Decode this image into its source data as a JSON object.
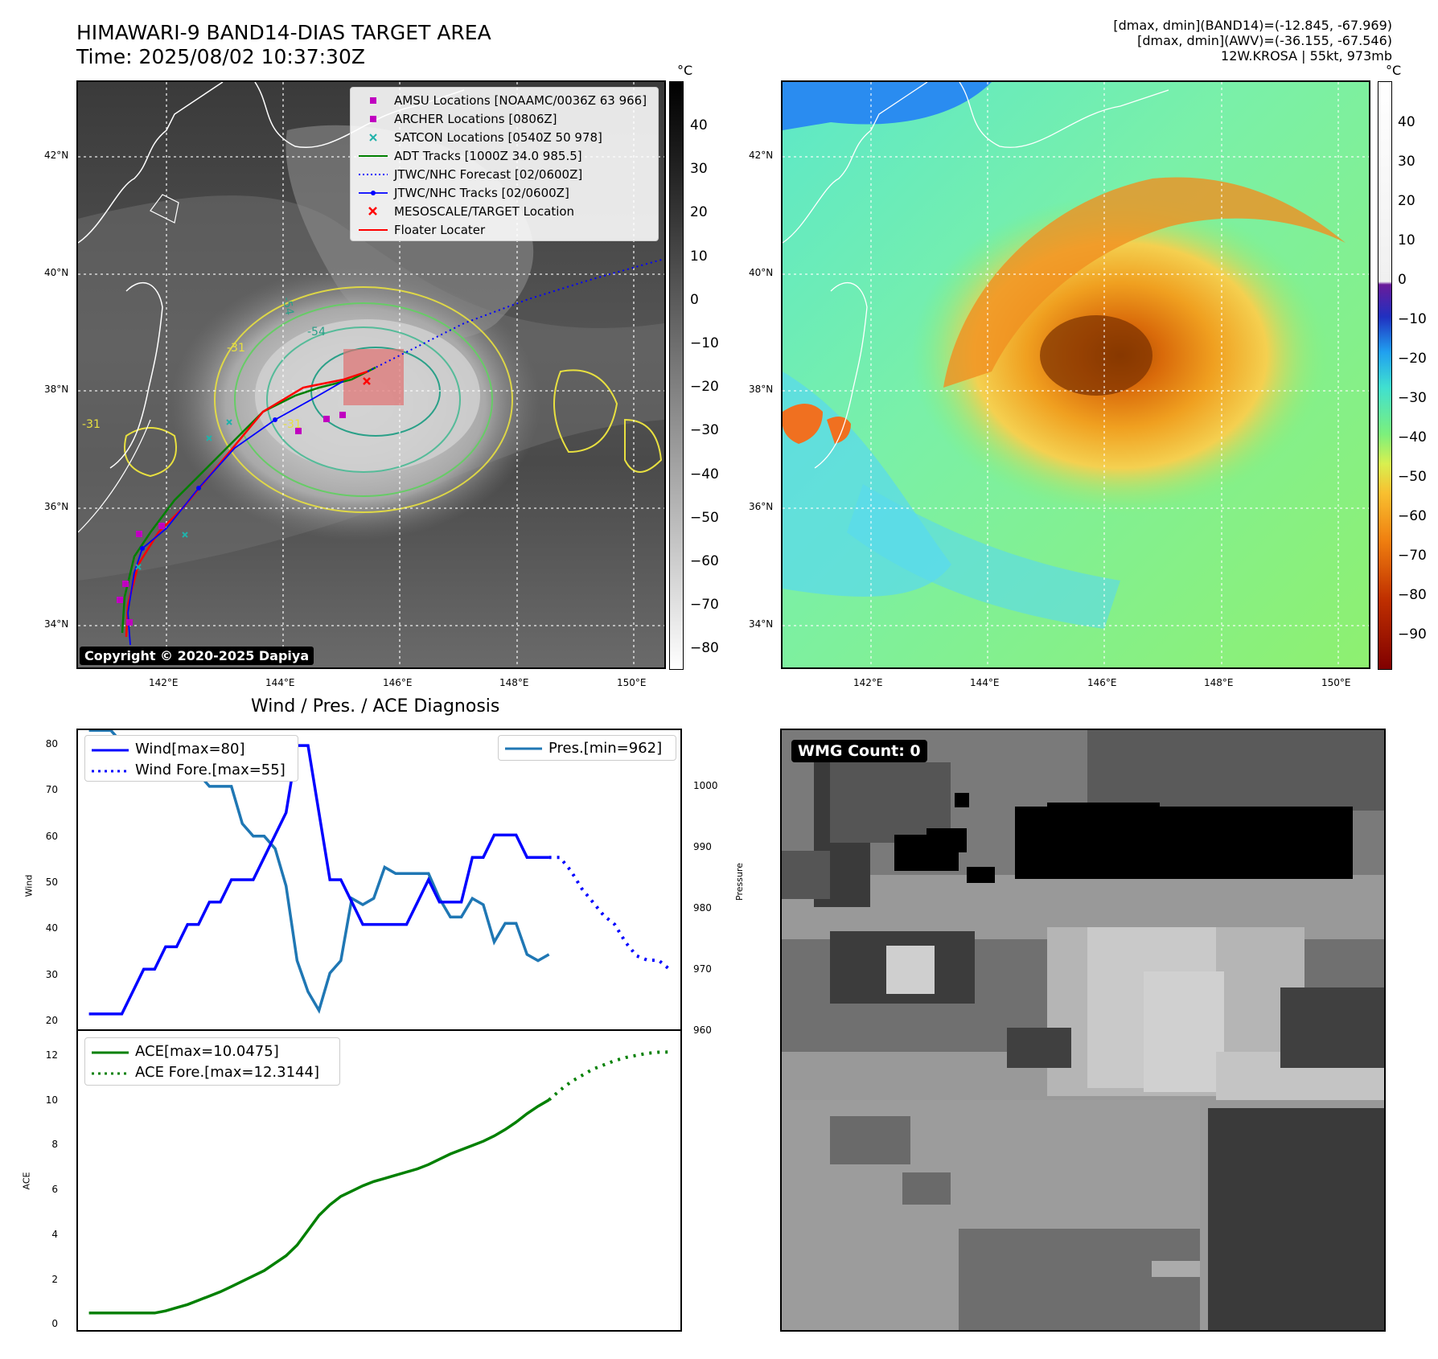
{
  "header": {
    "title_line1": "HIMAWARI-9 BAND14-DIAS TARGET AREA",
    "title_line2": "Time: 2025/08/02 10:37:30Z",
    "info_line1": "[dmax, dmin](BAND14)=(-12.845, -67.969)",
    "info_line2": "[dmax, dmin](AWV)=(-36.155, -67.546)",
    "info_line3": "12W.KROSA | 55kt, 973mb"
  },
  "map": {
    "lat_labels": [
      "42°N",
      "40°N",
      "38°N",
      "36°N",
      "34°N"
    ],
    "lon_labels": [
      "142°E",
      "144°E",
      "146°E",
      "148°E",
      "150°E"
    ],
    "copyright": "Copyright © 2020-2025 Dapiya",
    "contour_labels": [
      "-54",
      "-54",
      "-31",
      "-31",
      "-31"
    ]
  },
  "colorbar_ir": {
    "unit": "°C",
    "ticks": [
      "40",
      "30",
      "20",
      "10",
      "0",
      "−10",
      "−20",
      "−30",
      "−40",
      "−50",
      "−60",
      "−70",
      "−80"
    ]
  },
  "colorbar_wv": {
    "unit": "°C",
    "ticks": [
      "40",
      "30",
      "20",
      "10",
      "0",
      "−10",
      "−20",
      "−30",
      "−40",
      "−50",
      "−60",
      "−70",
      "−80",
      "−90"
    ]
  },
  "legend": {
    "items": [
      {
        "label": "AMSU Locations [NOAAMC/0036Z 63 966]",
        "color": "#c000c0",
        "symbol": "square"
      },
      {
        "label": "ARCHER Locations [0806Z]",
        "color": "#c000c0",
        "symbol": "square"
      },
      {
        "label": "SATCON Locations [0540Z 50 978]",
        "color": "#20b2aa",
        "symbol": "x"
      },
      {
        "label": "ADT Tracks [1000Z 34.0 985.5]",
        "color": "#008000",
        "symbol": "line"
      },
      {
        "label": "JTWC/NHC Forecast [02/0600Z]",
        "color": "#0000ff",
        "symbol": "dotted"
      },
      {
        "label": "JTWC/NHC Tracks [02/0600Z]",
        "color": "#0000ff",
        "symbol": "line-dot"
      },
      {
        "label": "MESOSCALE/TARGET Location",
        "color": "#ff0000",
        "symbol": "x"
      },
      {
        "label": "Floater Locater",
        "color": "#ff0000",
        "symbol": "line"
      }
    ]
  },
  "diagnosis": {
    "title": "Wind / Pres. / ACE Diagnosis",
    "wind_ylabel": "Wind",
    "pres_ylabel": "Pressure",
    "ace_ylabel": "ACE",
    "legend_wind": "Wind[max=80]",
    "legend_wind_fore": "Wind Fore.[max=55]",
    "legend_pres": "Pres.[min=962]",
    "legend_ace": "ACE[max=10.0475]",
    "legend_ace_fore": "ACE Fore.[max=12.3144]",
    "wind_ticks": [
      "80",
      "70",
      "60",
      "50",
      "40",
      "30",
      "20"
    ],
    "pres_ticks": [
      "1000",
      "990",
      "980",
      "970",
      "960"
    ],
    "ace_ticks": [
      "12",
      "10",
      "8",
      "6",
      "4",
      "2",
      "0"
    ]
  },
  "wmg": {
    "label": "WMG Count: 0"
  },
  "chart_data": [
    {
      "type": "line",
      "title": "Wind / Pres. / ACE Diagnosis",
      "ylabel": "Wind",
      "ylim": [
        18,
        82
      ],
      "series": [
        {
          "name": "Wind[max=80]",
          "x": [
            0,
            1,
            2,
            3,
            4,
            5,
            6,
            7,
            8,
            9,
            10,
            11,
            12,
            13,
            14,
            15,
            16,
            17,
            18,
            19,
            20,
            21,
            22,
            23,
            24,
            25,
            26,
            27,
            28,
            29,
            30,
            31,
            32,
            33,
            34,
            35,
            36,
            37,
            38,
            39,
            40,
            41,
            42
          ],
          "values": [
            20,
            20,
            20,
            20,
            25,
            30,
            30,
            35,
            35,
            40,
            40,
            45,
            45,
            50,
            50,
            50,
            55,
            60,
            65,
            80,
            80,
            65,
            50,
            50,
            45,
            40,
            40,
            40,
            40,
            40,
            45,
            50,
            45,
            45,
            45,
            55,
            55,
            60,
            60,
            60,
            55,
            55,
            55
          ]
        },
        {
          "name": "Wind Fore.[max=55]",
          "x": [
            42,
            43,
            44,
            45,
            46,
            47,
            48,
            49,
            50,
            51,
            52,
            53
          ],
          "values": [
            55,
            55,
            52,
            48,
            45,
            42,
            40,
            36,
            33,
            32,
            32,
            30
          ]
        }
      ]
    },
    {
      "type": "line",
      "ylabel": "Pressure",
      "ylim": [
        960,
        1008
      ],
      "series": [
        {
          "name": "Pres.[min=962]",
          "x": [
            0,
            1,
            2,
            3,
            4,
            5,
            6,
            7,
            8,
            9,
            10,
            11,
            12,
            13,
            14,
            15,
            16,
            17,
            18,
            19,
            20,
            21,
            22,
            23,
            24,
            25,
            26,
            27,
            28,
            29,
            30,
            31,
            32,
            33,
            34,
            35,
            36,
            37,
            38,
            39,
            40,
            41,
            42
          ],
          "values": [
            1007,
            1007,
            1007,
            1005,
            1005,
            1004,
            1004,
            1002,
            1002,
            1000,
            1000,
            998,
            998,
            998,
            992,
            990,
            990,
            988,
            982,
            970,
            965,
            962,
            968,
            970,
            980,
            979,
            980,
            985,
            984,
            984,
            984,
            984,
            980,
            977,
            977,
            980,
            979,
            973,
            976,
            976,
            971,
            970,
            971
          ]
        }
      ]
    },
    {
      "type": "line",
      "ylabel": "ACE",
      "ylim": [
        -0.5,
        13
      ],
      "series": [
        {
          "name": "ACE[max=10.0475]",
          "x": [
            0,
            1,
            2,
            3,
            4,
            5,
            6,
            7,
            8,
            9,
            10,
            11,
            12,
            13,
            14,
            15,
            16,
            17,
            18,
            19,
            20,
            21,
            22,
            23,
            24,
            25,
            26,
            27,
            28,
            29,
            30,
            31,
            32,
            33,
            34,
            35,
            36,
            37,
            38,
            39,
            40,
            41,
            42
          ],
          "values": [
            0,
            0,
            0,
            0,
            0,
            0,
            0,
            0.1,
            0.25,
            0.4,
            0.6,
            0.8,
            1.0,
            1.25,
            1.5,
            1.75,
            2.0,
            2.35,
            2.7,
            3.2,
            3.9,
            4.6,
            5.1,
            5.5,
            5.75,
            6.0,
            6.2,
            6.35,
            6.5,
            6.65,
            6.8,
            7.0,
            7.25,
            7.5,
            7.7,
            7.9,
            8.1,
            8.35,
            8.65,
            9.0,
            9.4,
            9.75,
            10.05
          ]
        },
        {
          "name": "ACE Fore.[max=12.3144]",
          "x": [
            42,
            43,
            44,
            45,
            46,
            47,
            48,
            49,
            50,
            51,
            52,
            53
          ],
          "values": [
            10.05,
            10.5,
            10.9,
            11.2,
            11.5,
            11.7,
            11.9,
            12.05,
            12.15,
            12.25,
            12.3,
            12.31
          ]
        }
      ]
    }
  ]
}
